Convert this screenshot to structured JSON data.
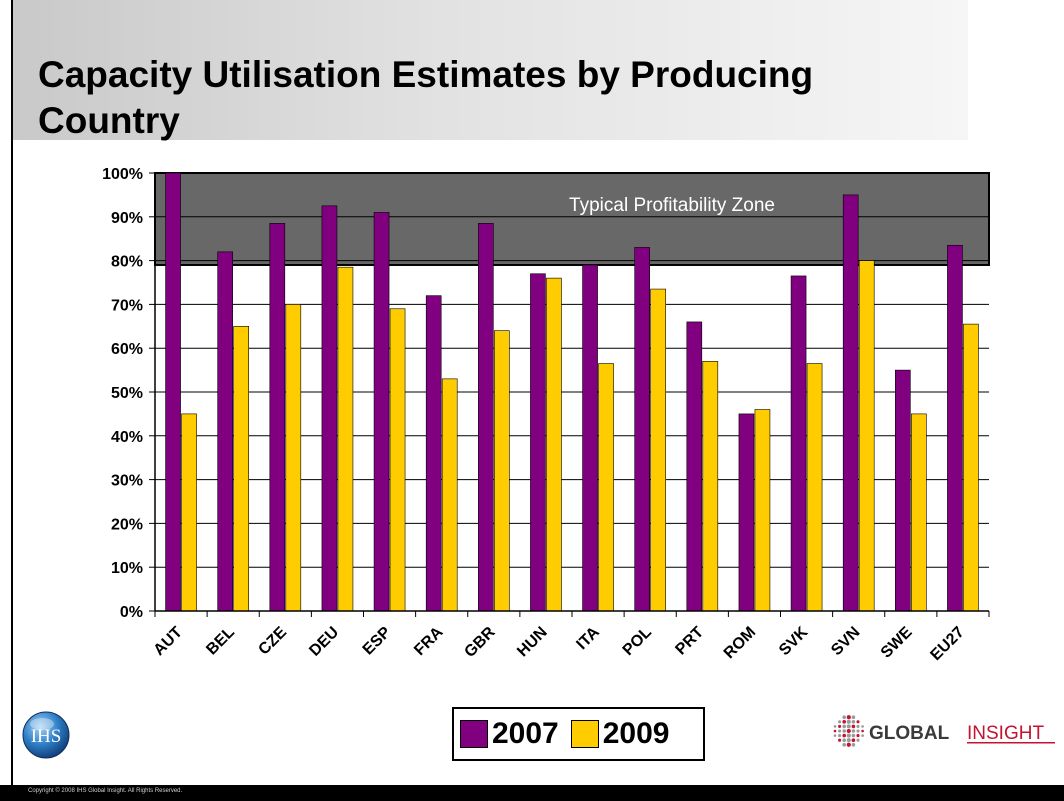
{
  "slide": {
    "title": "Capacity Utilisation Estimates by Producing Country",
    "copyright": "Copyright © 2008 IHS Global Insight. All Rights Reserved.",
    "ihs_logo_text": "IHS",
    "global_insight_logo": {
      "bold": "GLOBAL",
      "light": "INSIGHT"
    }
  },
  "colors": {
    "series_2007": "#800080",
    "series_2009": "#ffcc00",
    "zone_fill": "#686868"
  },
  "chart_data": {
    "type": "bar",
    "title": "",
    "xlabel": "",
    "ylabel": "",
    "ylim": [
      0,
      100
    ],
    "yticks": [
      "0%",
      "10%",
      "20%",
      "30%",
      "40%",
      "50%",
      "60%",
      "70%",
      "80%",
      "90%",
      "100%"
    ],
    "categories": [
      "AUT",
      "BEL",
      "CZE",
      "DEU",
      "ESP",
      "FRA",
      "GBR",
      "HUN",
      "ITA",
      "POL",
      "PRT",
      "ROM",
      "SVK",
      "SVN",
      "SWE",
      "EU27"
    ],
    "series": [
      {
        "name": "2007",
        "values": [
          100,
          82,
          88.5,
          92.5,
          91,
          72,
          88.5,
          77,
          79,
          83,
          66,
          45,
          76.5,
          95,
          55,
          83.5
        ]
      },
      {
        "name": "2009",
        "values": [
          45,
          65,
          70,
          78.5,
          69,
          53,
          64,
          76,
          56.5,
          73.5,
          57,
          46,
          56.5,
          80,
          45,
          65.5
        ]
      }
    ],
    "zone": {
      "label": "Typical Profitability Zone",
      "from": 79,
      "to": 100
    },
    "grid": true,
    "legend": "bottom-center"
  }
}
